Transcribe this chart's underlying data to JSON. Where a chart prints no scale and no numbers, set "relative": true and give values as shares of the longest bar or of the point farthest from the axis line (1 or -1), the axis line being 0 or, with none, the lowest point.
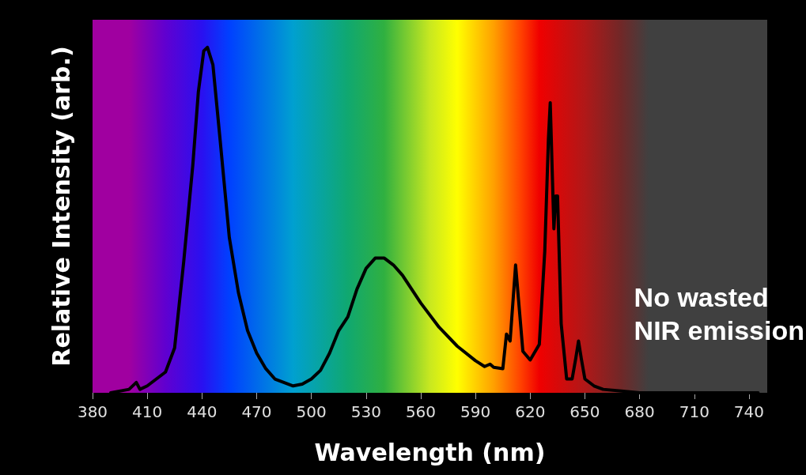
{
  "chart_data": {
    "type": "line",
    "relative": true,
    "xlabel": "Wavelength (nm)",
    "ylabel": "Relative Intensity (arb.)",
    "annotations": [
      "No wasted\nNIR emission"
    ],
    "x": [
      390,
      400,
      404,
      406,
      410,
      415,
      420,
      425,
      430,
      435,
      438,
      441,
      443,
      446,
      450,
      455,
      460,
      465,
      470,
      475,
      480,
      490,
      495,
      500,
      505,
      510,
      515,
      520,
      525,
      530,
      535,
      540,
      545,
      550,
      560,
      570,
      580,
      590,
      595,
      598,
      600,
      605,
      607,
      609,
      612,
      614,
      616,
      620,
      625,
      628,
      630,
      631,
      633,
      634,
      635,
      637,
      640,
      643,
      645,
      646.5,
      648,
      650,
      655,
      660,
      670,
      680,
      700,
      745
    ],
    "series": [
      {
        "color": "#000000",
        "values": [
          0,
          0.01,
          0.03,
          0.01,
          0.02,
          0.04,
          0.06,
          0.13,
          0.38,
          0.66,
          0.87,
          0.99,
          1,
          0.95,
          0.73,
          0.45,
          0.29,
          0.18,
          0.115,
          0.07,
          0.04,
          0.02,
          0.025,
          0.04,
          0.065,
          0.115,
          0.18,
          0.22,
          0.3,
          0.36,
          0.39,
          0.39,
          0.37,
          0.34,
          0.26,
          0.19,
          0.135,
          0.093,
          0.076,
          0.083,
          0.074,
          0.07,
          0.17,
          0.15,
          0.37,
          0.245,
          0.12,
          0.095,
          0.14,
          0.41,
          0.735,
          0.84,
          0.475,
          0.57,
          0.57,
          0.2,
          0.04,
          0.04,
          0.1,
          0.15,
          0.1,
          0.04,
          0.02,
          0.01,
          0.005,
          0,
          0,
          0
        ]
      }
    ],
    "xlim": [
      380,
      750
    ],
    "xticks": [
      380,
      410,
      440,
      470,
      500,
      530,
      560,
      590,
      620,
      650,
      680,
      710,
      740
    ],
    "grid": false,
    "marker": "none",
    "line_style": "solid"
  }
}
